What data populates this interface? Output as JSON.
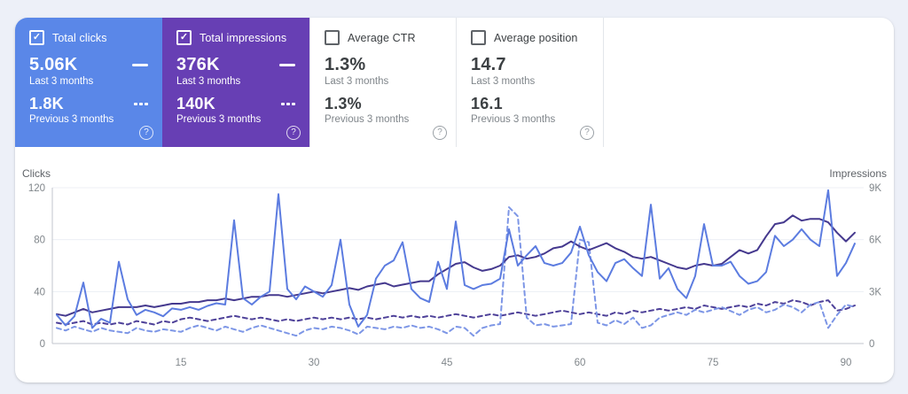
{
  "colors": {
    "page_bg": "#edf0f8",
    "panel_bg": "#ffffff",
    "card_clicks_bg": "#5a87e8",
    "card_impressions_bg": "#673fb4",
    "clicks_line": "#5c7ce0",
    "impressions_line": "#45398e",
    "clicks_prev_line": "#7d96e6",
    "impressions_prev_line": "#4e4199",
    "grid_line": "#eceff4",
    "axis_line": "#c2c6cc",
    "tick_text": "#80868b",
    "axis_title_text": "#5f6368"
  },
  "cards": [
    {
      "label": "Total clicks",
      "checked": true,
      "value_current": "5.06K",
      "caption_current": "Last 3 months",
      "value_previous": "1.8K",
      "caption_previous": "Previous 3 months",
      "help": "?"
    },
    {
      "label": "Total impressions",
      "checked": true,
      "value_current": "376K",
      "caption_current": "Last 3 months",
      "value_previous": "140K",
      "caption_previous": "Previous 3 months",
      "help": "?"
    },
    {
      "label": "Average CTR",
      "checked": false,
      "value_current": "1.3%",
      "caption_current": "Last 3 months",
      "value_previous": "1.3%",
      "caption_previous": "Previous 3 months",
      "help": "?"
    },
    {
      "label": "Average position",
      "checked": false,
      "value_current": "14.7",
      "caption_current": "Last 3 months",
      "value_previous": "16.1",
      "caption_previous": "Previous 3 months",
      "help": "?"
    }
  ],
  "chart": {
    "left_axis": {
      "title": "Clicks",
      "tick_labels": [
        "120",
        "80",
        "40",
        "0"
      ],
      "tick_values": [
        120,
        80,
        40,
        0
      ],
      "max": 120
    },
    "right_axis": {
      "title": "Impressions",
      "tick_labels": [
        "9K",
        "6K",
        "3K",
        "0"
      ],
      "tick_values": [
        9000,
        6000,
        3000,
        0
      ],
      "max": 9000
    },
    "x_axis": {
      "tick_values": [
        15,
        30,
        45,
        60,
        75,
        90
      ]
    }
  },
  "chart_data": {
    "type": "line",
    "x_start": 1,
    "x_end": 91,
    "x_ticks": [
      15,
      30,
      45,
      60,
      75,
      90
    ],
    "ylim_left": [
      0,
      120
    ],
    "ylim_right": [
      0,
      9000
    ],
    "grid": true,
    "legend_position": "none",
    "series": [
      {
        "key": "impressions-previous",
        "name": "Total impressions — Previous 3 months",
        "axis": "right",
        "style": "dashed",
        "color": "#4e4199",
        "values": [
          1200,
          1100,
          1200,
          1300,
          1100,
          1200,
          1100,
          1200,
          1100,
          1300,
          1200,
          1100,
          1300,
          1200,
          1400,
          1500,
          1400,
          1300,
          1400,
          1500,
          1600,
          1500,
          1400,
          1500,
          1400,
          1300,
          1400,
          1300,
          1400,
          1500,
          1400,
          1500,
          1400,
          1500,
          1400,
          1500,
          1400,
          1500,
          1600,
          1500,
          1600,
          1500,
          1600,
          1500,
          1600,
          1700,
          1600,
          1500,
          1600,
          1700,
          1600,
          1700,
          1800,
          1700,
          1600,
          1700,
          1800,
          1900,
          1800,
          1700,
          1800,
          1700,
          1600,
          1800,
          1700,
          1900,
          1800,
          1900,
          2000,
          1900,
          2000,
          2100,
          2000,
          2200,
          2100,
          2000,
          2100,
          2200,
          2100,
          2300,
          2200,
          2400,
          2300,
          2500,
          2400,
          2200,
          2400,
          2500,
          1900,
          2000,
          2200
        ]
      },
      {
        "key": "clicks-previous",
        "name": "Total clicks — Previous 3 months",
        "axis": "left",
        "style": "dashed",
        "color": "#7d96e6",
        "values": [
          12,
          10,
          13,
          11,
          9,
          12,
          10,
          9,
          8,
          12,
          10,
          9,
          11,
          10,
          9,
          12,
          14,
          12,
          10,
          13,
          11,
          9,
          12,
          14,
          12,
          10,
          8,
          6,
          10,
          12,
          11,
          13,
          12,
          10,
          7,
          13,
          12,
          11,
          13,
          12,
          14,
          12,
          13,
          11,
          8,
          13,
          12,
          6,
          12,
          14,
          15,
          105,
          98,
          20,
          14,
          15,
          13,
          14,
          15,
          80,
          78,
          16,
          14,
          18,
          15,
          20,
          12,
          14,
          20,
          22,
          24,
          22,
          26,
          24,
          26,
          28,
          25,
          22,
          26,
          28,
          24,
          26,
          30,
          28,
          24,
          30,
          32,
          12,
          22,
          30,
          28
        ]
      },
      {
        "key": "impressions-current",
        "name": "Total impressions — Last 3 months",
        "axis": "right",
        "style": "solid",
        "color": "#45398e",
        "values": [
          1700,
          1600,
          1800,
          2000,
          1800,
          1900,
          2000,
          2100,
          2100,
          2100,
          2200,
          2100,
          2200,
          2300,
          2300,
          2400,
          2400,
          2500,
          2500,
          2600,
          2500,
          2600,
          2700,
          2700,
          2800,
          2800,
          2700,
          2800,
          2900,
          3000,
          2900,
          3000,
          3100,
          3200,
          3100,
          3300,
          3400,
          3500,
          3300,
          3400,
          3500,
          3600,
          3600,
          4000,
          4300,
          4600,
          4700,
          4400,
          4200,
          4300,
          4500,
          5000,
          5100,
          4900,
          5000,
          5200,
          5500,
          5600,
          5900,
          5600,
          5400,
          5600,
          5800,
          5500,
          5300,
          5000,
          4900,
          5000,
          4800,
          4600,
          4400,
          4300,
          4500,
          4600,
          4500,
          4600,
          5000,
          5400,
          5200,
          5400,
          6200,
          6900,
          7000,
          7400,
          7100,
          7200,
          7200,
          7000,
          6400,
          5900,
          6400
        ]
      },
      {
        "key": "clicks-current",
        "name": "Total clicks — Last 3 months",
        "axis": "left",
        "style": "solid",
        "color": "#5c7ce0",
        "values": [
          22,
          14,
          21,
          47,
          12,
          19,
          16,
          63,
          34,
          22,
          26,
          24,
          21,
          27,
          26,
          28,
          26,
          29,
          31,
          30,
          95,
          35,
          30,
          36,
          40,
          115,
          42,
          34,
          44,
          40,
          36,
          45,
          80,
          30,
          13,
          22,
          50,
          60,
          64,
          78,
          42,
          35,
          32,
          63,
          42,
          94,
          45,
          42,
          45,
          46,
          50,
          88,
          60,
          68,
          75,
          62,
          60,
          62,
          70,
          90,
          68,
          55,
          48,
          62,
          65,
          58,
          52,
          107,
          50,
          58,
          42,
          35,
          52,
          92,
          60,
          60,
          63,
          52,
          46,
          48,
          55,
          83,
          75,
          80,
          88,
          80,
          75,
          118,
          52,
          62,
          77
        ]
      }
    ]
  }
}
